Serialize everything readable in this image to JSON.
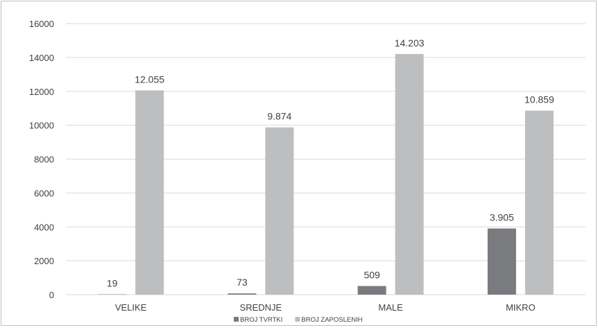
{
  "chart_data": {
    "type": "bar",
    "categories": [
      "VELIKE",
      "SREDNJE",
      "MALE",
      "MIKRO"
    ],
    "series": [
      {
        "name": "BROJ TVRTKI",
        "values": [
          19,
          73,
          509,
          3905
        ],
        "labels": [
          "19",
          "73",
          "509",
          "3.905"
        ],
        "color": "#7a7b7e"
      },
      {
        "name": "BROJ ZAPOSLENIH",
        "values": [
          12055,
          9874,
          14203,
          10859
        ],
        "labels": [
          "12.055",
          "9.874",
          "14.203",
          "10.859"
        ],
        "color": "#bdbec0"
      }
    ],
    "ylim": [
      0,
      16000
    ],
    "yticks": [
      "0",
      "2000",
      "4000",
      "6000",
      "8000",
      "10000",
      "12000",
      "14000",
      "16000"
    ],
    "grid": true,
    "legend_position": "bottom"
  }
}
